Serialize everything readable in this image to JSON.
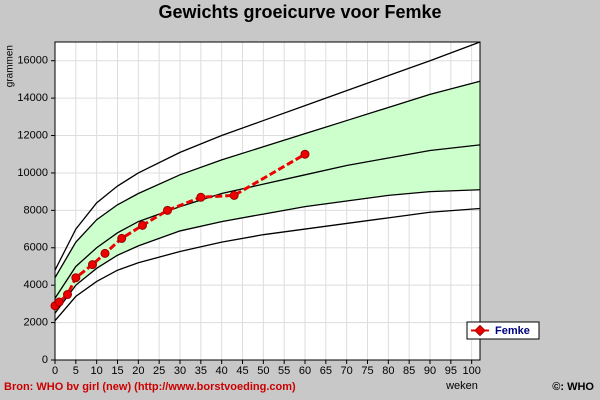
{
  "chart_data": {
    "type": "line",
    "title": "Gewichts groeicurve voor Femke",
    "y_label": "grammen",
    "x_label": "weken",
    "source": "Bron: WHO bv girl (new) (http://www.borstvoeding.com)",
    "credit": "©: WHO",
    "xlim": [
      0,
      102
    ],
    "ylim": [
      0,
      17000
    ],
    "xticks": [
      0,
      5,
      10,
      15,
      20,
      25,
      30,
      35,
      40,
      45,
      50,
      55,
      60,
      65,
      70,
      75,
      80,
      85,
      90,
      95,
      100
    ],
    "yticks": [
      0,
      2000,
      4000,
      6000,
      8000,
      10000,
      12000,
      14000,
      16000
    ],
    "grid": true,
    "band": {
      "color": "#ccffcc",
      "line_color": "#000000",
      "x": [
        0,
        5,
        10,
        15,
        20,
        30,
        40,
        50,
        60,
        70,
        80,
        90,
        102
      ],
      "upper": [
        4400,
        6300,
        7500,
        8300,
        8900,
        9900,
        10700,
        11400,
        12100,
        12800,
        13500,
        14200,
        14900
      ],
      "lower": [
        2500,
        4000,
        4900,
        5600,
        6100,
        6900,
        7400,
        7800,
        8200,
        8500,
        8800,
        9000,
        9100
      ]
    },
    "series": [
      {
        "color": "#000000",
        "x": [
          0,
          5,
          10,
          15,
          20,
          30,
          40,
          50,
          60,
          70,
          80,
          90,
          102
        ],
        "values": [
          4800,
          7000,
          8400,
          9300,
          10000,
          11100,
          12000,
          12800,
          13600,
          14400,
          15200,
          16000,
          17000
        ]
      },
      {
        "color": "#000000",
        "x": [
          0,
          5,
          10,
          15,
          20,
          30,
          40,
          50,
          60,
          70,
          80,
          90,
          102
        ],
        "values": [
          3300,
          5000,
          6000,
          6800,
          7400,
          8200,
          8900,
          9400,
          9900,
          10400,
          10800,
          11200,
          11500
        ]
      },
      {
        "color": "#000000",
        "x": [
          0,
          5,
          10,
          15,
          20,
          30,
          40,
          50,
          60,
          70,
          80,
          90,
          102
        ],
        "values": [
          2100,
          3400,
          4200,
          4800,
          5200,
          5800,
          6300,
          6700,
          7000,
          7300,
          7600,
          7900,
          8100
        ]
      },
      {
        "name": "Femke",
        "color": "#ee0000",
        "x": [
          0,
          1,
          3,
          5,
          9,
          12,
          16,
          21,
          27,
          35,
          43,
          60
        ],
        "values": [
          2900,
          3100,
          3500,
          4400,
          5100,
          5700,
          6500,
          7200,
          8000,
          8700,
          8800,
          11000
        ]
      }
    ],
    "legend": "lower right"
  }
}
